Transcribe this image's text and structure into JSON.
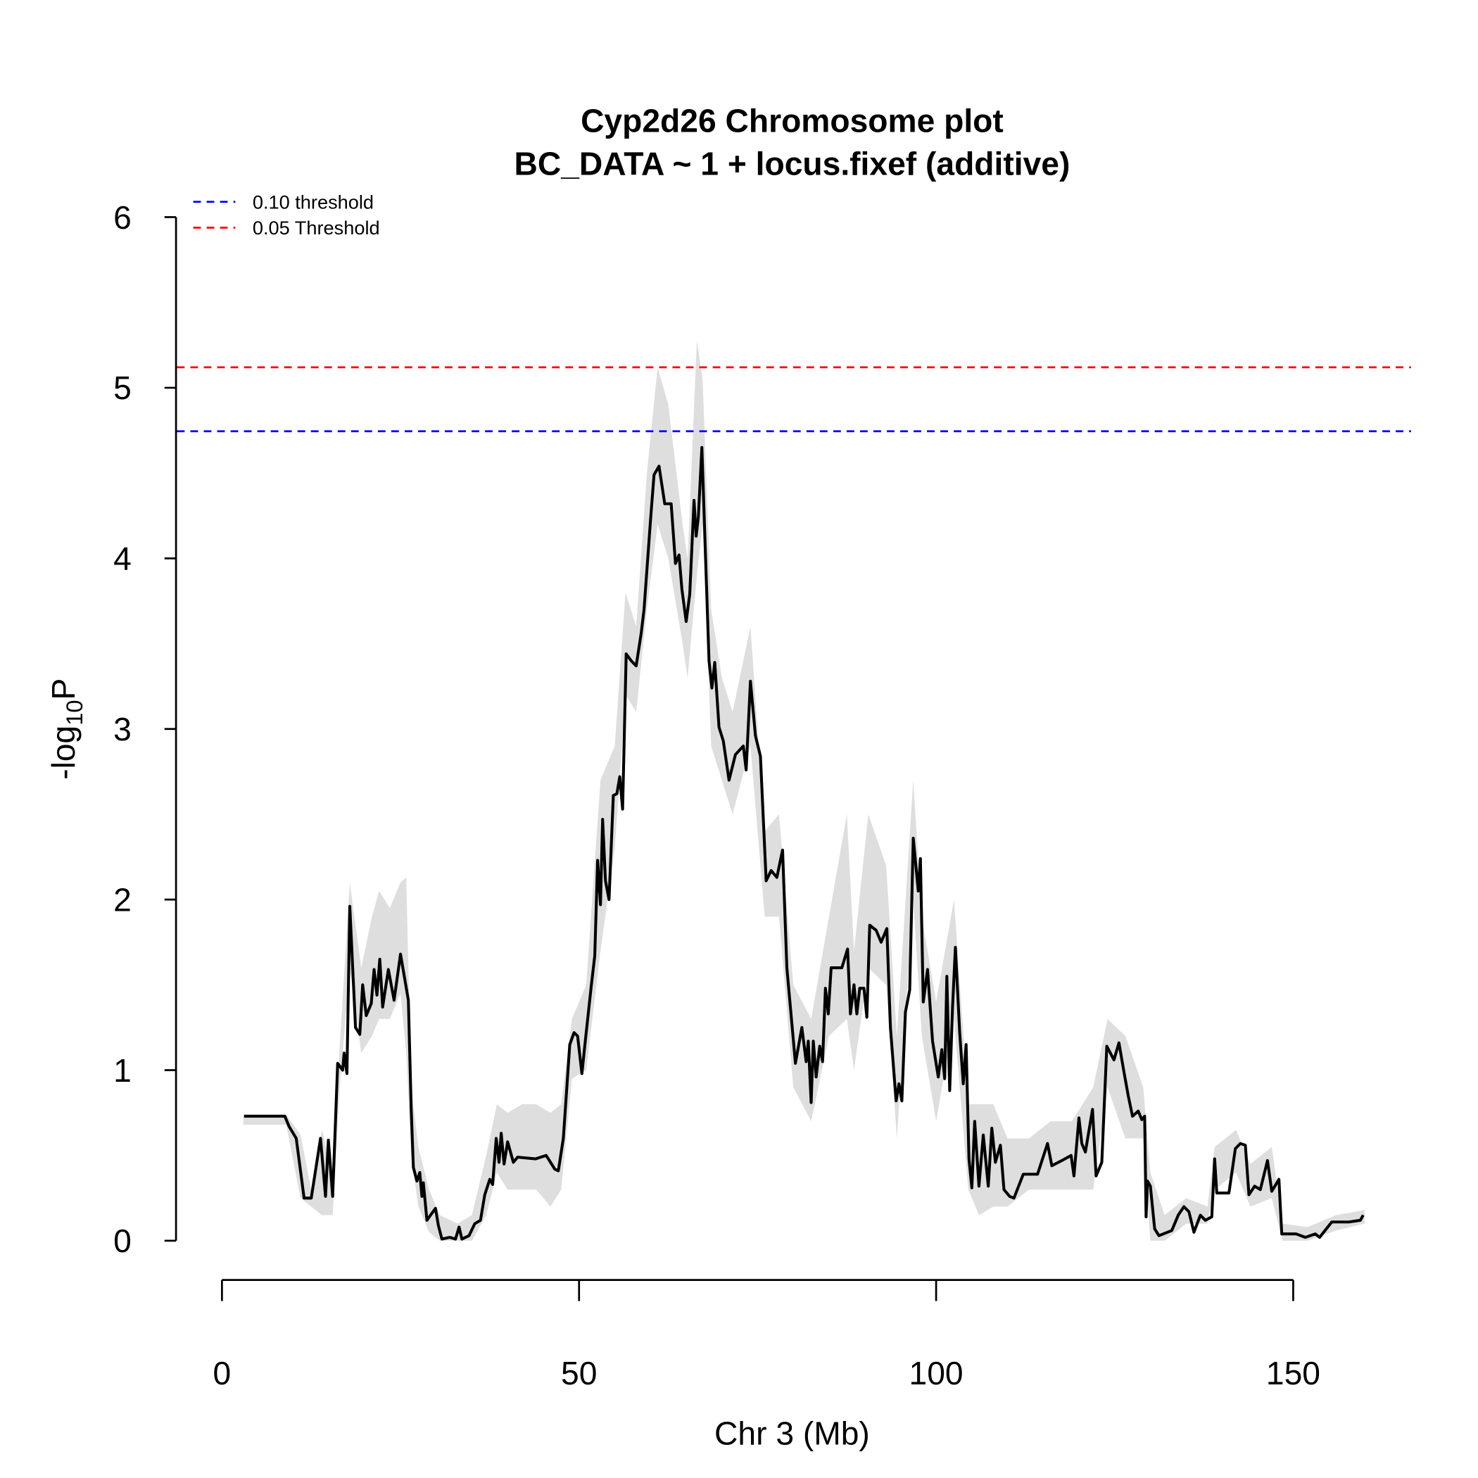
{
  "chart_data": {
    "type": "line",
    "title": "Cyp2d26 Chromosome plot",
    "subtitle": "BC_DATA ~ 1 + locus.fixef (additive)",
    "x_label": "Chr 3 (Mb)",
    "y_label": {
      "text": "-log",
      "sub": "10",
      "tail": "P"
    },
    "xlim": [
      -6.3,
      166.5
    ],
    "ylim": [
      0,
      6
    ],
    "xticks": [
      0,
      50,
      100,
      150
    ],
    "yticks": [
      0,
      1,
      2,
      3,
      4,
      5,
      6
    ],
    "legend": "top-left",
    "series": [
      {
        "color": "#000000",
        "x": [
          3.1,
          8.8,
          9.4,
          10.4,
          11.5,
          12.5,
          13.8,
          14.5,
          14.9,
          15.5,
          16.2,
          16.9,
          17.1,
          17.5,
          17.9,
          18.7,
          19.3,
          19.7,
          20.2,
          20.9,
          21.3,
          21.7,
          22.1,
          22.5,
          23.3,
          24.1,
          25.0,
          26.1,
          26.5,
          26.8,
          27.3,
          27.7,
          28.0,
          28.2,
          28.7,
          29.2,
          29.9,
          30.3,
          30.8,
          31.9,
          32.7,
          33.2,
          33.6,
          34.6,
          35.4,
          36.2,
          36.8,
          37.5,
          37.9,
          38.4,
          38.8,
          39.1,
          39.5,
          40.0,
          40.8,
          41.4,
          43.9,
          45.4,
          46.6,
          47.1,
          47.8,
          48.7,
          49.3,
          49.8,
          50.4,
          50.9,
          51.7,
          52.2,
          52.6,
          53.0,
          53.3,
          53.7,
          54.2,
          54.8,
          55.3,
          55.7,
          56.1,
          56.6,
          57.3,
          58.0,
          58.7,
          59.1,
          60.0,
          60.5,
          61.2,
          62.0,
          62.9,
          63.5,
          64.0,
          64.4,
          65.0,
          65.5,
          66.1,
          66.4,
          66.7,
          67.2,
          68.2,
          68.6,
          69.0,
          69.6,
          70.2,
          71.0,
          71.9,
          73.0,
          73.4,
          74.0,
          74.7,
          75.4,
          76.2,
          76.9,
          77.7,
          78.5,
          79.1,
          80.3,
          81.2,
          81.8,
          82.1,
          82.5,
          82.8,
          83.2,
          83.7,
          84.1,
          84.5,
          84.9,
          85.3,
          86.8,
          87.6,
          88.0,
          88.5,
          88.9,
          89.3,
          89.9,
          90.3,
          90.7,
          91.6,
          92.3,
          93.1,
          93.6,
          94.4,
          94.8,
          95.2,
          95.7,
          96.3,
          96.8,
          97.5,
          97.8,
          98.2,
          98.8,
          99.5,
          100.3,
          100.8,
          101.2,
          101.5,
          101.9,
          102.3,
          102.7,
          103.3,
          103.8,
          104.2,
          104.6,
          105.0,
          105.4,
          106.0,
          106.6,
          107.3,
          107.8,
          108.3,
          109.0,
          109.5,
          110.3,
          110.9,
          112.2,
          114.2,
          115.6,
          116.2,
          117.6,
          118.9,
          119.3,
          120.0,
          120.4,
          120.9,
          121.9,
          122.4,
          123.2,
          123.9,
          124.9,
          125.6,
          126.3,
          126.9,
          127.5,
          128.3,
          128.8,
          129.2,
          129.4,
          129.6,
          130.0,
          130.6,
          131.2,
          133.0,
          133.9,
          134.7,
          135.4,
          136.1,
          137.0,
          137.7,
          138.6,
          139.0,
          139.3,
          141.0,
          141.9,
          142.6,
          143.3,
          143.8,
          144.6,
          145.4,
          146.4,
          147.0,
          148.0,
          148.4,
          150.4,
          151.7,
          153.1,
          153.7,
          155.4,
          157.8,
          159.4,
          159.8
        ],
        "values": [
          0.73,
          0.73,
          0.67,
          0.6,
          0.25,
          0.25,
          0.6,
          0.26,
          0.59,
          0.26,
          1.04,
          1.0,
          1.1,
          0.98,
          1.96,
          1.25,
          1.21,
          1.5,
          1.32,
          1.39,
          1.59,
          1.44,
          1.65,
          1.37,
          1.59,
          1.41,
          1.68,
          1.41,
          0.77,
          0.43,
          0.35,
          0.4,
          0.26,
          0.34,
          0.12,
          0.15,
          0.19,
          0.09,
          0.01,
          0.02,
          0.01,
          0.08,
          0.01,
          0.03,
          0.1,
          0.12,
          0.27,
          0.36,
          0.33,
          0.6,
          0.46,
          0.63,
          0.45,
          0.58,
          0.46,
          0.49,
          0.48,
          0.5,
          0.42,
          0.41,
          0.6,
          1.15,
          1.22,
          1.2,
          0.98,
          1.18,
          1.49,
          1.67,
          2.23,
          1.97,
          2.47,
          2.11,
          2.0,
          2.61,
          2.62,
          2.72,
          2.53,
          3.44,
          3.4,
          3.37,
          3.56,
          3.7,
          4.22,
          4.49,
          4.54,
          4.32,
          4.32,
          3.97,
          4.02,
          3.82,
          3.63,
          3.79,
          4.34,
          4.13,
          4.24,
          4.65,
          3.4,
          3.24,
          3.39,
          3.01,
          2.93,
          2.7,
          2.85,
          2.9,
          2.76,
          3.28,
          2.96,
          2.84,
          2.11,
          2.17,
          2.13,
          2.29,
          1.6,
          1.04,
          1.25,
          1.05,
          1.17,
          0.81,
          1.17,
          0.96,
          1.14,
          1.05,
          1.48,
          1.33,
          1.6,
          1.6,
          1.71,
          1.33,
          1.5,
          1.33,
          1.48,
          1.48,
          1.31,
          1.85,
          1.82,
          1.75,
          1.83,
          1.25,
          0.82,
          0.92,
          0.82,
          1.34,
          1.47,
          2.36,
          2.05,
          2.24,
          1.4,
          1.59,
          1.17,
          0.96,
          1.12,
          0.95,
          1.55,
          0.88,
          1.37,
          1.72,
          1.22,
          0.92,
          1.15,
          0.48,
          0.31,
          0.7,
          0.32,
          0.62,
          0.32,
          0.66,
          0.46,
          0.56,
          0.3,
          0.26,
          0.25,
          0.39,
          0.39,
          0.57,
          0.44,
          0.47,
          0.5,
          0.38,
          0.72,
          0.57,
          0.52,
          0.77,
          0.38,
          0.46,
          1.14,
          1.06,
          1.16,
          0.99,
          0.85,
          0.73,
          0.76,
          0.71,
          0.73,
          0.14,
          0.35,
          0.32,
          0.07,
          0.03,
          0.06,
          0.15,
          0.2,
          0.17,
          0.05,
          0.15,
          0.12,
          0.14,
          0.48,
          0.28,
          0.28,
          0.54,
          0.57,
          0.56,
          0.27,
          0.32,
          0.3,
          0.47,
          0.29,
          0.36,
          0.04,
          0.04,
          0.02,
          0.04,
          0.02,
          0.11,
          0.11,
          0.12,
          0.15
        ]
      }
    ],
    "band": {
      "color": "#dedede",
      "x": [
        3,
        9,
        11,
        12.5,
        14,
        15.5,
        16.5,
        17.9,
        19.5,
        21,
        22,
        23.5,
        25,
        25.8,
        26.5,
        27.5,
        29,
        30.5,
        33,
        35,
        37,
        38.5,
        40,
        42,
        44,
        46,
        47.5,
        49,
        51,
        53,
        55,
        56.5,
        58,
        59.5,
        61,
        62.5,
        64.5,
        65.2,
        66.5,
        67.3,
        68.5,
        70,
        71.5,
        74,
        76,
        78,
        80,
        82.5,
        85,
        87.5,
        88.5,
        90.5,
        93,
        94.5,
        96.8,
        98,
        100,
        102.5,
        104.5,
        106,
        108,
        110,
        113,
        116,
        119,
        122,
        124,
        126.5,
        129,
        130,
        132,
        135,
        138,
        139,
        142,
        144,
        147,
        148.5,
        152,
        156,
        160
      ],
      "lower": [
        0.68,
        0.68,
        0.25,
        0.2,
        0.15,
        0.15,
        0.9,
        1.6,
        1.1,
        1.2,
        1.3,
        1.3,
        1.45,
        1.1,
        0.5,
        0.2,
        0.05,
        0,
        0,
        0,
        0.15,
        0.4,
        0.3,
        0.3,
        0.3,
        0.2,
        0.3,
        0.95,
        1.0,
        1.7,
        2.3,
        3.2,
        3.1,
        3.7,
        4.2,
        4.0,
        3.5,
        3.3,
        3.9,
        4.2,
        2.9,
        2.7,
        2.5,
        2.9,
        1.9,
        1.9,
        0.9,
        0.7,
        1.2,
        1.3,
        1.0,
        1.6,
        1.5,
        0.6,
        2.0,
        1.2,
        0.7,
        1.3,
        0.3,
        0.15,
        0.2,
        0.2,
        0.3,
        0.3,
        0.3,
        0.3,
        0.9,
        0.6,
        0.6,
        0,
        0,
        0.1,
        0.1,
        0.3,
        0.4,
        0.2,
        0.25,
        0,
        0,
        0.06,
        0.1
      ],
      "upper": [
        0.74,
        0.74,
        0.62,
        0.3,
        0.65,
        0.4,
        1.15,
        2.1,
        1.6,
        1.9,
        2.05,
        1.95,
        2.1,
        2.13,
        0.9,
        0.55,
        0.3,
        0.15,
        0.1,
        0.15,
        0.5,
        0.8,
        0.75,
        0.8,
        0.8,
        0.75,
        0.8,
        1.3,
        1.5,
        2.7,
        2.9,
        3.8,
        3.6,
        4.5,
        5.12,
        4.9,
        4.2,
        4.0,
        5.28,
        5.05,
        3.7,
        3.3,
        3.1,
        3.6,
        2.4,
        2.5,
        1.5,
        1.3,
        1.9,
        2.5,
        1.7,
        2.5,
        2.2,
        1.2,
        2.7,
        1.9,
        1.4,
        2.0,
        0.8,
        0.8,
        0.8,
        0.6,
        0.6,
        0.7,
        0.7,
        0.9,
        1.3,
        1.2,
        0.9,
        0.4,
        0.15,
        0.25,
        0.2,
        0.55,
        0.65,
        0.45,
        0.55,
        0.1,
        0.08,
        0.15,
        0.18
      ]
    },
    "thresholds": [
      {
        "name": "0.10 threshold",
        "color": "#0000ff",
        "value": 4.745
      },
      {
        "name": "0.05 Threshold",
        "color": "#ff0000",
        "value": 5.12
      }
    ]
  }
}
